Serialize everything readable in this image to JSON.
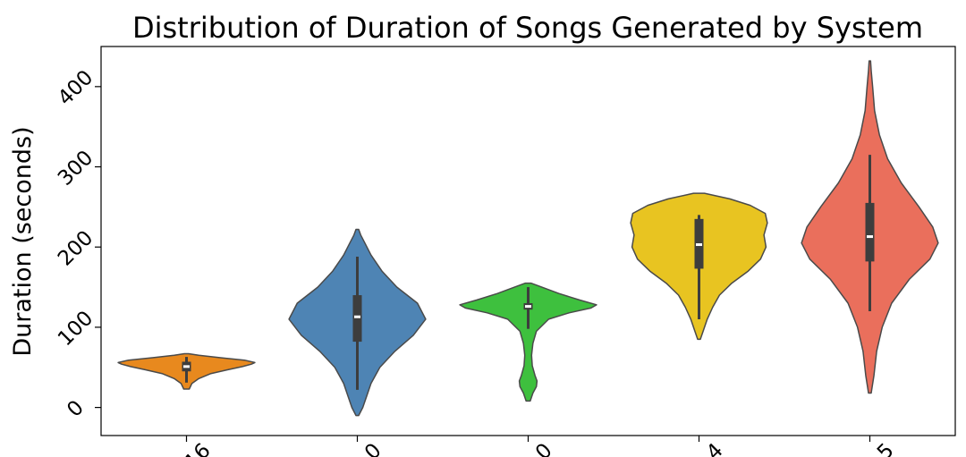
{
  "chart_data": {
    "type": "violin",
    "title": "Distribution of Duration of Songs Generated by System",
    "xlabel": "",
    "ylabel": "Duration (seconds)",
    "ylim": [
      -35,
      450
    ],
    "yticks": [
      0,
      100,
      200,
      300,
      400
    ],
    "ytick_labels": [
      "0",
      "100",
      "200",
      "300",
      "400"
    ],
    "xtick_labels_partial": [
      "...16",
      "...0",
      "...0",
      "...4",
      "...5"
    ],
    "grid": false,
    "series": [
      {
        "color": "#e8891e",
        "median": 51,
        "q1": 45,
        "q3": 57,
        "whisker_low": 31,
        "whisker_high": 63,
        "min": 23,
        "max": 67,
        "density": [
          [
            23,
            0.04
          ],
          [
            30,
            0.08
          ],
          [
            36,
            0.18
          ],
          [
            42,
            0.35
          ],
          [
            47,
            0.6
          ],
          [
            51,
            0.82
          ],
          [
            54,
            0.95
          ],
          [
            56,
            1.0
          ],
          [
            59,
            0.85
          ],
          [
            62,
            0.5
          ],
          [
            65,
            0.18
          ],
          [
            67,
            0.03
          ]
        ]
      },
      {
        "color": "#4e84b4",
        "median": 113,
        "q1": 82,
        "q3": 140,
        "whisker_low": 22,
        "whisker_high": 188,
        "min": -10,
        "max": 222,
        "density": [
          [
            -10,
            0.02
          ],
          [
            0,
            0.08
          ],
          [
            15,
            0.14
          ],
          [
            30,
            0.2
          ],
          [
            50,
            0.33
          ],
          [
            70,
            0.55
          ],
          [
            90,
            0.82
          ],
          [
            110,
            1.0
          ],
          [
            130,
            0.88
          ],
          [
            150,
            0.58
          ],
          [
            170,
            0.36
          ],
          [
            190,
            0.2
          ],
          [
            205,
            0.11
          ],
          [
            215,
            0.05
          ],
          [
            222,
            0.02
          ]
        ]
      },
      {
        "color": "#3ec03e",
        "median": 126,
        "q1": 122,
        "q3": 130,
        "whisker_low": 98,
        "whisker_high": 150,
        "min": 8,
        "max": 155,
        "density": [
          [
            8,
            0.03
          ],
          [
            18,
            0.07
          ],
          [
            26,
            0.12
          ],
          [
            33,
            0.13
          ],
          [
            40,
            0.1
          ],
          [
            52,
            0.06
          ],
          [
            65,
            0.05
          ],
          [
            80,
            0.07
          ],
          [
            95,
            0.12
          ],
          [
            110,
            0.3
          ],
          [
            118,
            0.6
          ],
          [
            124,
            0.92
          ],
          [
            128,
            1.0
          ],
          [
            134,
            0.75
          ],
          [
            142,
            0.45
          ],
          [
            150,
            0.2
          ],
          [
            155,
            0.04
          ]
        ]
      },
      {
        "color": "#e8c421",
        "median": 203,
        "q1": 173,
        "q3": 235,
        "whisker_low": 110,
        "whisker_high": 240,
        "min": 85,
        "max": 267,
        "density": [
          [
            85,
            0.02
          ],
          [
            95,
            0.06
          ],
          [
            110,
            0.12
          ],
          [
            125,
            0.2
          ],
          [
            140,
            0.3
          ],
          [
            155,
            0.48
          ],
          [
            170,
            0.72
          ],
          [
            185,
            0.9
          ],
          [
            200,
            0.98
          ],
          [
            215,
            0.95
          ],
          [
            230,
            1.0
          ],
          [
            242,
            0.97
          ],
          [
            252,
            0.75
          ],
          [
            260,
            0.45
          ],
          [
            267,
            0.08
          ]
        ]
      },
      {
        "color": "#ea6f5c",
        "median": 213,
        "q1": 182,
        "q3": 255,
        "whisker_low": 120,
        "whisker_high": 315,
        "min": 18,
        "max": 432,
        "density": [
          [
            18,
            0.02
          ],
          [
            40,
            0.06
          ],
          [
            70,
            0.1
          ],
          [
            100,
            0.18
          ],
          [
            130,
            0.32
          ],
          [
            160,
            0.58
          ],
          [
            185,
            0.88
          ],
          [
            205,
            1.0
          ],
          [
            225,
            0.92
          ],
          [
            250,
            0.72
          ],
          [
            280,
            0.46
          ],
          [
            310,
            0.26
          ],
          [
            340,
            0.14
          ],
          [
            370,
            0.07
          ],
          [
            400,
            0.04
          ],
          [
            420,
            0.02
          ],
          [
            432,
            0.01
          ]
        ]
      }
    ]
  },
  "style": {
    "outline_color": "#4a4a4a",
    "box_color": "#3d3d3d",
    "median_color": "#ffffff"
  }
}
